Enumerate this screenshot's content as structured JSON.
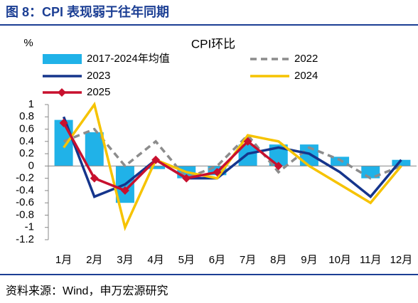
{
  "header": {
    "title": "图 8：CPI 表现弱于往年同期"
  },
  "footer": {
    "source": "资料来源：Wind，申万宏源研究"
  },
  "chart_data": {
    "type": "combo",
    "title": "CPI环比",
    "y_label": "%",
    "categories": [
      "1月",
      "2月",
      "3月",
      "4月",
      "5月",
      "6月",
      "7月",
      "8月",
      "9月",
      "10月",
      "11月",
      "12月"
    ],
    "ylim": [
      -1.2,
      1
    ],
    "yticks": [
      1,
      0.8,
      0.6,
      0.4,
      0.2,
      0,
      -0.2,
      -0.4,
      -0.6,
      -0.8,
      -1,
      -1.2
    ],
    "series": [
      {
        "name": "2017-2024年均值",
        "type": "bar",
        "color": "#20b2e8",
        "values": [
          0.75,
          0.55,
          -0.6,
          -0.05,
          -0.2,
          -0.15,
          0.35,
          0.35,
          0.35,
          0.15,
          -0.2,
          0.1
        ]
      },
      {
        "name": "2022",
        "type": "line",
        "dash": true,
        "color": "#8c8c8c",
        "values": [
          0.4,
          0.6,
          0.0,
          0.4,
          -0.2,
          0.0,
          0.5,
          -0.1,
          0.3,
          0.1,
          -0.2,
          0.0
        ]
      },
      {
        "name": "2023",
        "type": "line",
        "color": "#15358c",
        "values": [
          0.8,
          -0.5,
          -0.3,
          0.1,
          -0.2,
          -0.2,
          0.2,
          0.3,
          0.2,
          -0.1,
          -0.5,
          0.1
        ]
      },
      {
        "name": "2024",
        "type": "line",
        "color": "#f6c300",
        "values": [
          0.3,
          1.0,
          -1.0,
          0.1,
          -0.1,
          -0.2,
          0.5,
          0.4,
          0.0,
          -0.3,
          -0.6,
          0.0
        ]
      },
      {
        "name": "2025",
        "type": "line",
        "marker": "diamond",
        "color": "#c8102e",
        "values": [
          0.7,
          -0.2,
          -0.4,
          0.1,
          -0.2,
          -0.1,
          0.4,
          0.0,
          null,
          null,
          null,
          null
        ]
      }
    ]
  }
}
